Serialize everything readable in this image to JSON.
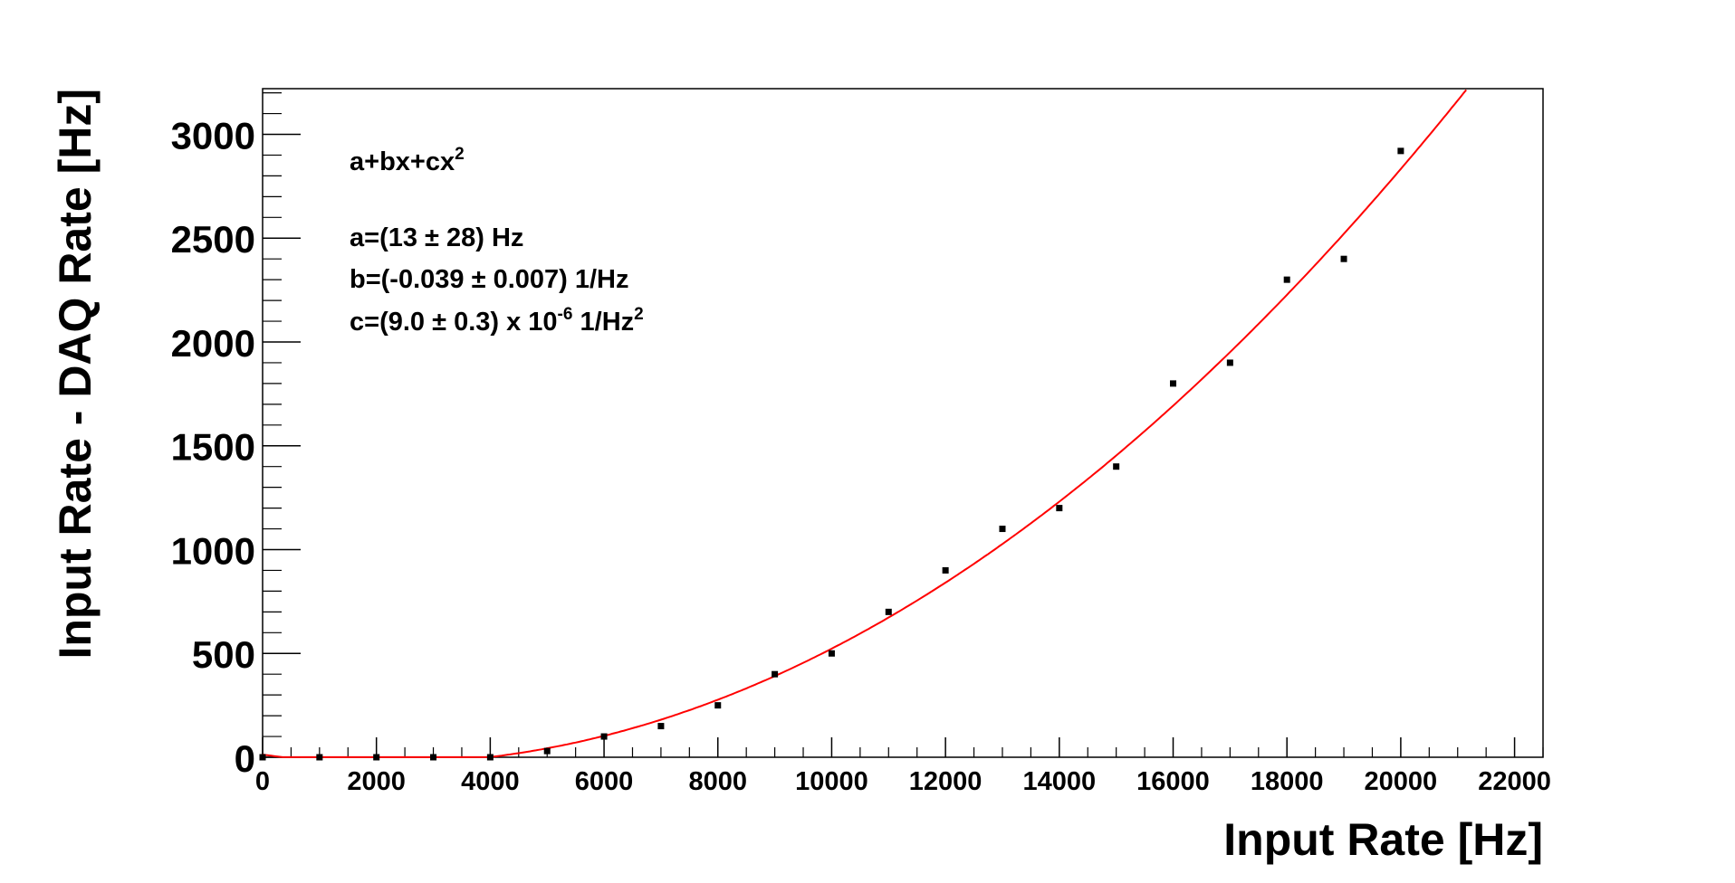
{
  "chart_data": {
    "type": "scatter",
    "xlabel": "Input Rate [Hz]",
    "ylabel": "Input Rate - DAQ Rate [Hz]",
    "xlim": [
      0,
      22500
    ],
    "ylim": [
      0,
      3220
    ],
    "x_ticks": [
      0,
      2000,
      4000,
      6000,
      8000,
      10000,
      12000,
      14000,
      16000,
      18000,
      20000,
      22000
    ],
    "y_ticks": [
      0,
      500,
      1000,
      1500,
      2000,
      2500,
      3000
    ],
    "grid": false,
    "points": [
      {
        "x": 0,
        "y": 0
      },
      {
        "x": 1000,
        "y": 0
      },
      {
        "x": 2000,
        "y": 0
      },
      {
        "x": 3000,
        "y": 0
      },
      {
        "x": 4000,
        "y": 0
      },
      {
        "x": 5000,
        "y": 30
      },
      {
        "x": 6000,
        "y": 100
      },
      {
        "x": 7000,
        "y": 150
      },
      {
        "x": 8000,
        "y": 250
      },
      {
        "x": 9000,
        "y": 400
      },
      {
        "x": 10000,
        "y": 500
      },
      {
        "x": 11000,
        "y": 700
      },
      {
        "x": 12000,
        "y": 900
      },
      {
        "x": 13000,
        "y": 1100
      },
      {
        "x": 14000,
        "y": 1200
      },
      {
        "x": 15000,
        "y": 1400
      },
      {
        "x": 16000,
        "y": 1800
      },
      {
        "x": 17000,
        "y": 1900
      },
      {
        "x": 18000,
        "y": 2300
      },
      {
        "x": 19000,
        "y": 2400
      },
      {
        "x": 20000,
        "y": 2920
      }
    ],
    "fit": {
      "color": "#ff0000",
      "a": 13,
      "b": -0.039,
      "c": 9e-06
    },
    "point_color": "#000000",
    "annotations": {
      "formula_base": "a+bx+cx",
      "formula_exp": "2",
      "line_a": "a=(13 ± 28) Hz",
      "line_b": "b=(-0.039 ± 0.007) 1/Hz",
      "line_c_main": "c=(9.0 ± 0.3) x 10",
      "line_c_exp": "-6",
      "line_c_unit": " 1/Hz",
      "line_c_unit_exp": "2"
    }
  }
}
